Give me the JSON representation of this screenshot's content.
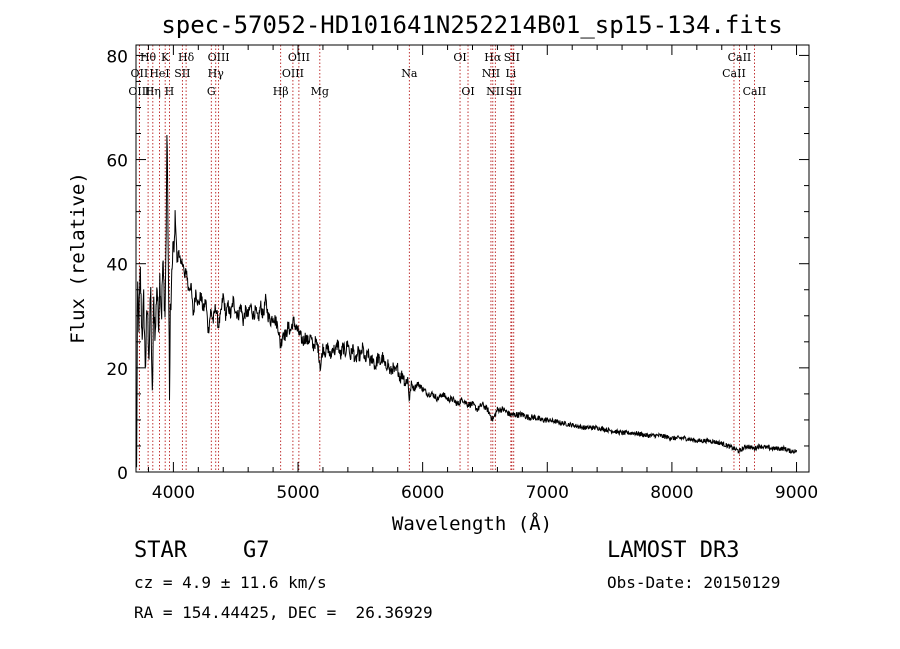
{
  "chart_data": {
    "type": "line",
    "title": "spec-57052-HD101641N252214B01_sp15-134.fits",
    "xlabel": "Wavelength (Å)",
    "ylabel": "Flux (relative)",
    "xlim": [
      3700,
      9100
    ],
    "ylim": [
      0,
      82
    ],
    "xticks": [
      4000,
      5000,
      6000,
      7000,
      8000,
      9000
    ],
    "xtick_labels": [
      "4000",
      "5000",
      "6000",
      "7000",
      "8000",
      "9000"
    ],
    "yticks": [
      0,
      20,
      40,
      60,
      80
    ],
    "ytick_labels": [
      "0",
      "20",
      "40",
      "60",
      "80"
    ],
    "series": [
      {
        "name": "spectrum",
        "anchors": [
          [
            3705,
            0
          ],
          [
            3712,
            35
          ],
          [
            3722,
            28
          ],
          [
            3735,
            38
          ],
          [
            3748,
            26
          ],
          [
            3762,
            33
          ],
          [
            3775,
            20
          ],
          [
            3790,
            32
          ],
          [
            3805,
            22
          ],
          [
            3818,
            36
          ],
          [
            3830,
            12
          ],
          [
            3842,
            33
          ],
          [
            3855,
            26
          ],
          [
            3868,
            37
          ],
          [
            3880,
            28
          ],
          [
            3892,
            38
          ],
          [
            3905,
            30
          ],
          [
            3915,
            40
          ],
          [
            3925,
            35
          ],
          [
            3933,
            30
          ],
          [
            3940,
            42
          ],
          [
            3950,
            67
          ],
          [
            3958,
            40
          ],
          [
            3965,
            32
          ],
          [
            3968,
            10
          ],
          [
            3975,
            30
          ],
          [
            3985,
            34
          ],
          [
            3995,
            44
          ],
          [
            4005,
            42
          ],
          [
            4015,
            50
          ],
          [
            4030,
            40
          ],
          [
            4045,
            43
          ],
          [
            4060,
            39
          ],
          [
            4075,
            41
          ],
          [
            4090,
            37
          ],
          [
            4105,
            39
          ],
          [
            4120,
            35
          ],
          [
            4140,
            36
          ],
          [
            4160,
            30
          ],
          [
            4180,
            35
          ],
          [
            4200,
            32
          ],
          [
            4220,
            34
          ],
          [
            4240,
            31
          ],
          [
            4260,
            33
          ],
          [
            4280,
            27
          ],
          [
            4300,
            31
          ],
          [
            4320,
            29
          ],
          [
            4340,
            32
          ],
          [
            4360,
            28
          ],
          [
            4380,
            30
          ],
          [
            4400,
            34
          ],
          [
            4420,
            30
          ],
          [
            4440,
            32
          ],
          [
            4460,
            30
          ],
          [
            4480,
            33
          ],
          [
            4500,
            31
          ],
          [
            4520,
            30
          ],
          [
            4540,
            32
          ],
          [
            4560,
            29
          ],
          [
            4580,
            31
          ],
          [
            4600,
            30
          ],
          [
            4620,
            32
          ],
          [
            4640,
            30
          ],
          [
            4660,
            31
          ],
          [
            4680,
            29
          ],
          [
            4700,
            32
          ],
          [
            4720,
            30
          ],
          [
            4740,
            33
          ],
          [
            4760,
            30
          ],
          [
            4780,
            29
          ],
          [
            4800,
            30
          ],
          [
            4820,
            29
          ],
          [
            4840,
            28
          ],
          [
            4860,
            24
          ],
          [
            4880,
            27
          ],
          [
            4900,
            26
          ],
          [
            4920,
            28
          ],
          [
            4940,
            27
          ],
          [
            4960,
            29
          ],
          [
            4980,
            28
          ],
          [
            5000,
            27
          ],
          [
            5020,
            26
          ],
          [
            5040,
            25
          ],
          [
            5060,
            26
          ],
          [
            5080,
            25
          ],
          [
            5100,
            26
          ],
          [
            5120,
            24
          ],
          [
            5140,
            25
          ],
          [
            5160,
            24
          ],
          [
            5180,
            20
          ],
          [
            5200,
            24
          ],
          [
            5220,
            23
          ],
          [
            5240,
            24
          ],
          [
            5260,
            22
          ],
          [
            5280,
            24
          ],
          [
            5300,
            23
          ],
          [
            5320,
            25
          ],
          [
            5340,
            22
          ],
          [
            5360,
            24
          ],
          [
            5380,
            23
          ],
          [
            5400,
            25
          ],
          [
            5420,
            22
          ],
          [
            5440,
            24
          ],
          [
            5460,
            21
          ],
          [
            5480,
            23
          ],
          [
            5500,
            22
          ],
          [
            5520,
            24
          ],
          [
            5540,
            21
          ],
          [
            5560,
            23
          ],
          [
            5580,
            21
          ],
          [
            5600,
            22
          ],
          [
            5620,
            20
          ],
          [
            5640,
            22
          ],
          [
            5660,
            21
          ],
          [
            5680,
            22
          ],
          [
            5700,
            20
          ],
          [
            5720,
            21
          ],
          [
            5740,
            19
          ],
          [
            5760,
            20
          ],
          [
            5780,
            19
          ],
          [
            5800,
            20
          ],
          [
            5820,
            18
          ],
          [
            5840,
            19
          ],
          [
            5860,
            17
          ],
          [
            5880,
            18
          ],
          [
            5893,
            14
          ],
          [
            5910,
            17
          ],
          [
            5930,
            16
          ],
          [
            5960,
            17
          ],
          [
            6000,
            16
          ],
          [
            6040,
            15
          ],
          [
            6080,
            15
          ],
          [
            6120,
            14
          ],
          [
            6160,
            15
          ],
          [
            6200,
            14
          ],
          [
            6240,
            14
          ],
          [
            6280,
            13
          ],
          [
            6320,
            14
          ],
          [
            6360,
            13
          ],
          [
            6400,
            13
          ],
          [
            6440,
            12
          ],
          [
            6480,
            13
          ],
          [
            6520,
            12
          ],
          [
            6563,
            10
          ],
          [
            6600,
            12
          ],
          [
            6650,
            12
          ],
          [
            6700,
            11
          ],
          [
            6750,
            11
          ],
          [
            6800,
            11
          ],
          [
            6850,
            10.5
          ],
          [
            6900,
            10.5
          ],
          [
            6950,
            10
          ],
          [
            7000,
            10
          ],
          [
            7100,
            9.5
          ],
          [
            7200,
            9
          ],
          [
            7300,
            8.5
          ],
          [
            7400,
            8.5
          ],
          [
            7500,
            8
          ],
          [
            7600,
            7.5
          ],
          [
            7700,
            7.5
          ],
          [
            7800,
            7
          ],
          [
            7900,
            7
          ],
          [
            8000,
            6.5
          ],
          [
            8100,
            6.5
          ],
          [
            8200,
            6
          ],
          [
            8300,
            6
          ],
          [
            8400,
            5.5
          ],
          [
            8498,
            4.5
          ],
          [
            8542,
            4
          ],
          [
            8600,
            5
          ],
          [
            8662,
            4.5
          ],
          [
            8700,
            5
          ],
          [
            8800,
            4.5
          ],
          [
            8900,
            4.5
          ],
          [
            8950,
            4
          ],
          [
            9000,
            4
          ]
        ]
      }
    ],
    "lines": [
      {
        "label": "Hθ",
        "wave": 3797,
        "row": 0
      },
      {
        "label": "K",
        "wave": 3934,
        "row": 0
      },
      {
        "label": "Hδ",
        "wave": 4102,
        "row": 0
      },
      {
        "label": "OIII",
        "wave": 4363,
        "row": 0
      },
      {
        "label": "OIII",
        "wave": 5007,
        "row": 0
      },
      {
        "label": "OI",
        "wave": 6300,
        "row": 0
      },
      {
        "label": "Hα",
        "wave": 6563,
        "row": 0
      },
      {
        "label": "SII",
        "wave": 6716,
        "row": 0
      },
      {
        "label": "CaII",
        "wave": 8542,
        "row": 0
      },
      {
        "label": "OII",
        "wave": 3727,
        "row": 1
      },
      {
        "label": "HeI",
        "wave": 3889,
        "row": 1
      },
      {
        "label": "SII",
        "wave": 4072,
        "row": 1
      },
      {
        "label": "Hγ",
        "wave": 4340,
        "row": 1
      },
      {
        "label": "OIII",
        "wave": 4959,
        "row": 1
      },
      {
        "label": "Na",
        "wave": 5893,
        "row": 1
      },
      {
        "label": "NII",
        "wave": 6548,
        "row": 1
      },
      {
        "label": "Li",
        "wave": 6708,
        "row": 1
      },
      {
        "label": "CaII",
        "wave": 8498,
        "row": 1
      },
      {
        "label": "OIII",
        "wave": 3727,
        "row": 2
      },
      {
        "label": "Hη",
        "wave": 3835,
        "row": 2
      },
      {
        "label": "H",
        "wave": 3968,
        "row": 2
      },
      {
        "label": "G",
        "wave": 4304,
        "row": 2
      },
      {
        "label": "Hβ",
        "wave": 4861,
        "row": 2
      },
      {
        "label": "Mg",
        "wave": 5175,
        "row": 2
      },
      {
        "label": "OI",
        "wave": 6364,
        "row": 2
      },
      {
        "label": "NII",
        "wave": 6583,
        "row": 2
      },
      {
        "label": "SII",
        "wave": 6731,
        "row": 2
      },
      {
        "label": "CaII",
        "wave": 8662,
        "row": 2
      }
    ],
    "line_color": "#b00000",
    "spectrum_color": "#000000"
  },
  "info": {
    "class": "STAR",
    "subclass": "G7",
    "survey": "LAMOST DR3",
    "cz": "cz = 4.9 ± 11.6 km/s",
    "obs_date": "Obs-Date: 20150129",
    "radec": "RA = 154.44425, DEC =  26.36929"
  }
}
